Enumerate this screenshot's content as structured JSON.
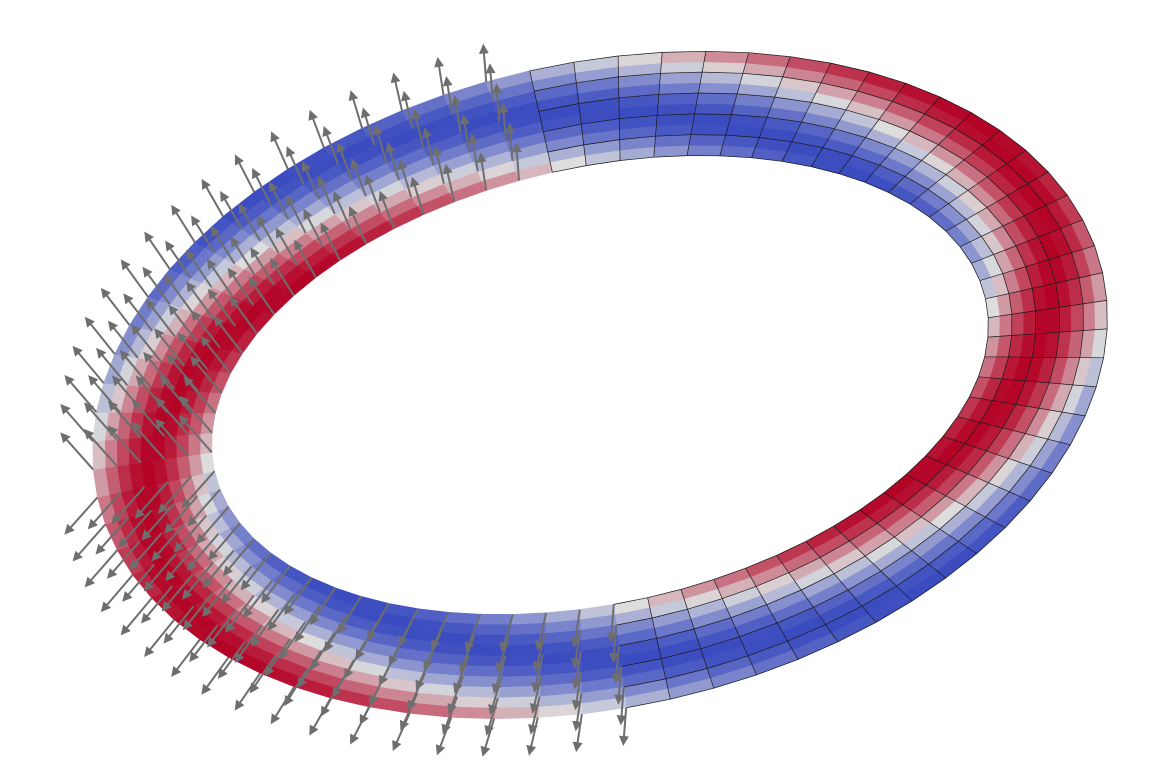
{
  "viewport": {
    "background": "#ffffff"
  },
  "visualization": {
    "object": "torus",
    "scalar_coloring": {
      "colormap": "cool-to-warm",
      "low_color": "#3b4cc0",
      "mid_color": "#dddddd",
      "high_color": "#b40426"
    },
    "glyphs": {
      "type": "arrow",
      "color": "#6e6e6e"
    },
    "wireframe_edges": {
      "color": "#1a1a1a"
    }
  }
}
